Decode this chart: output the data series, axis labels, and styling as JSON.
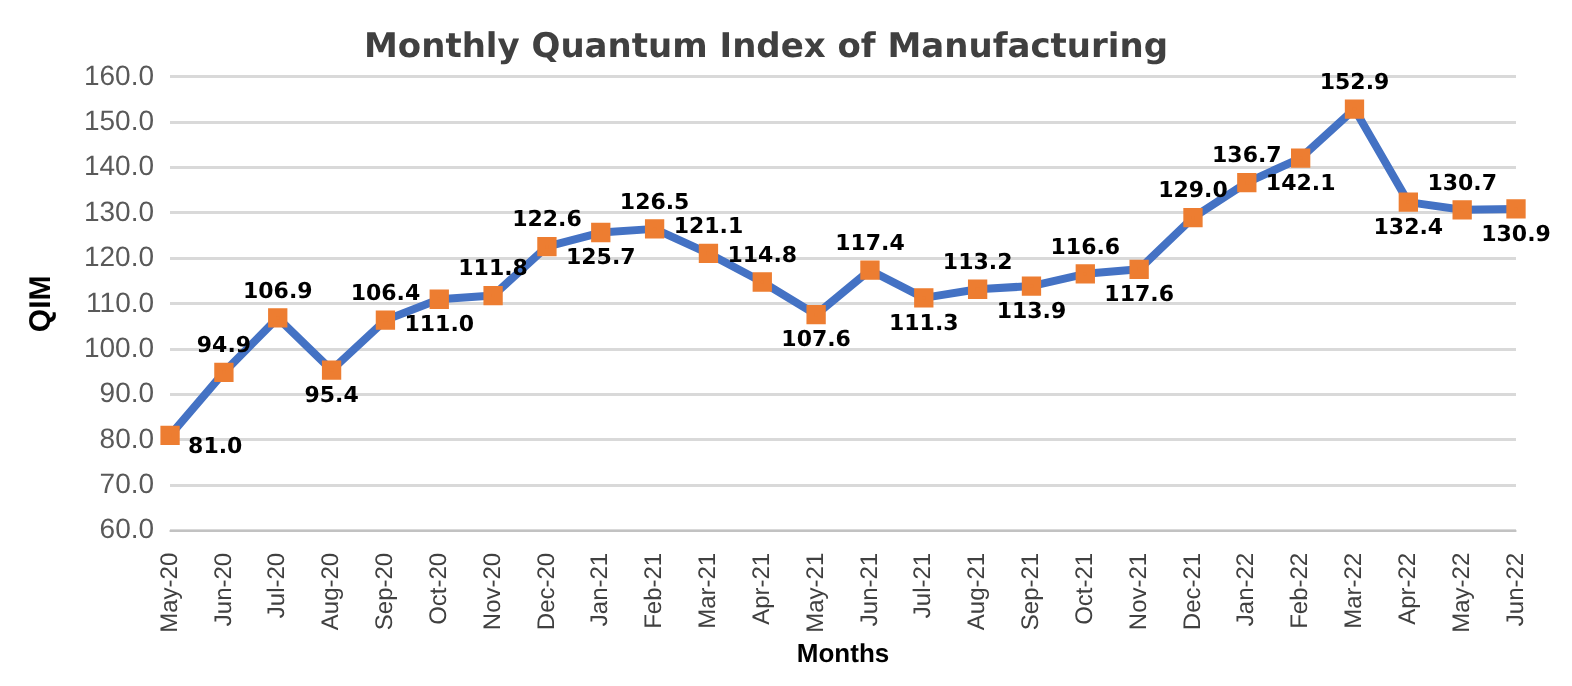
{
  "chart_data": {
    "type": "line",
    "title": "Monthly Quantum Index of Manufacturing",
    "xlabel": "Months",
    "ylabel": "QIM",
    "categories": [
      "May-20",
      "Jun-20",
      "Jul-20",
      "Aug-20",
      "Sep-20",
      "Oct-20",
      "Nov-20",
      "Dec-20",
      "Jan-21",
      "Feb-21",
      "Mar-21",
      "Apr-21",
      "May-21",
      "Jun-21",
      "Jul-21",
      "Aug-21",
      "Sep-21",
      "Oct-21",
      "Nov-21",
      "Dec-21",
      "Jan-22",
      "Feb-22",
      "Mar-22",
      "Apr-22",
      "May-22",
      "Jun-22"
    ],
    "series": [
      {
        "color": "#4472c4",
        "colors": [
          "#ed7d31",
          "#ed7d31",
          "#ed7d31",
          "#ed7d31",
          "#ed7d31",
          "#ed7d31",
          "#ed7d31",
          "#ed7d31",
          "#ed7d31",
          "#ed7d31",
          "#ed7d31",
          "#ed7d31",
          "#ed7d31",
          "#ed7d31",
          "#ed7d31",
          "#ed7d31",
          "#ed7d31",
          "#ed7d31",
          "#ed7d31",
          "#ed7d31",
          "#ed7d31",
          "#ed7d31",
          "#ed7d31",
          "#ed7d31",
          "#ed7d31",
          "#ed7d31"
        ],
        "values": [
          81.0,
          94.9,
          106.9,
          95.4,
          106.4,
          111.0,
          111.8,
          122.6,
          125.7,
          126.5,
          121.1,
          114.8,
          107.6,
          117.4,
          111.3,
          113.2,
          113.9,
          116.6,
          117.6,
          129.0,
          136.7,
          142.1,
          152.9,
          132.4,
          130.7,
          130.9
        ],
        "value_labels": [
          "81.0",
          "94.9",
          "106.9",
          "95.4",
          "106.4",
          "111.0",
          "111.8",
          "122.6",
          "125.7",
          "126.5",
          "121.1",
          "114.8",
          "107.6",
          "117.4",
          "111.3",
          "113.2",
          "113.9",
          "116.6",
          "117.6",
          "129.0",
          "136.7",
          "142.1",
          "152.9",
          "132.4",
          "130.7",
          "130.9"
        ]
      }
    ],
    "ylim": [
      60,
      160
    ],
    "yticks": [
      {
        "value": 60,
        "label": "60.0"
      },
      {
        "value": 70,
        "label": "70.0"
      },
      {
        "value": 80,
        "label": "80.0"
      },
      {
        "value": 90,
        "label": "90.0"
      },
      {
        "value": 100,
        "label": "100.0"
      },
      {
        "value": 110,
        "label": "110.0"
      },
      {
        "value": 120,
        "label": "120.0"
      },
      {
        "value": 130,
        "label": "130.0"
      },
      {
        "value": 140,
        "label": "140.0"
      },
      {
        "value": 150,
        "label": "150.0"
      },
      {
        "value": 160,
        "label": "160.0"
      }
    ],
    "grid": "y",
    "legend": false,
    "marker": "square",
    "line_style": "solid"
  }
}
